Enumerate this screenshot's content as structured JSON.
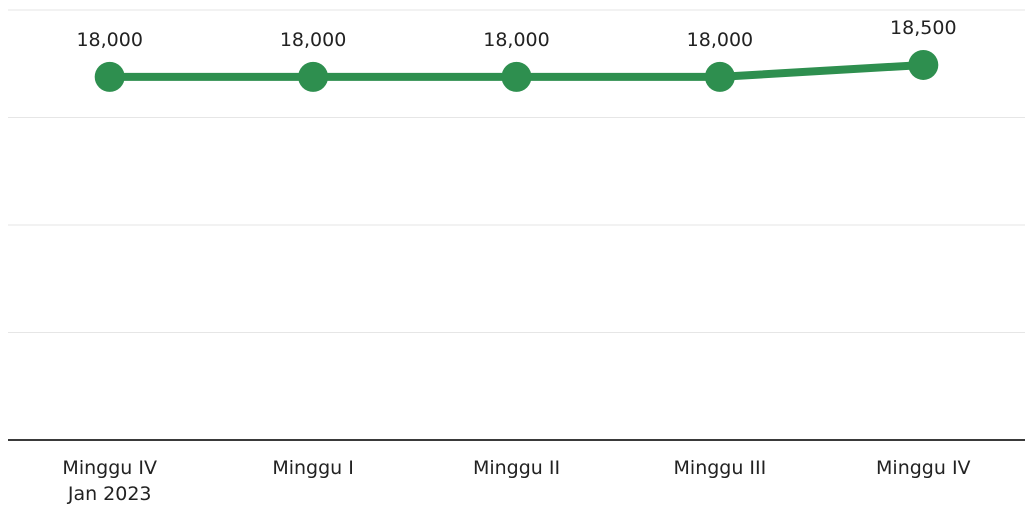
{
  "chart_data": {
    "type": "line",
    "categories": [
      "Minggu IV\nJan 2023",
      "Minggu I",
      "Minggu II",
      "Minggu III",
      "Minggu IV"
    ],
    "series": [
      {
        "color": "#2e8f4f",
        "values": [
          18000,
          18000,
          18000,
          18000,
          18500
        ],
        "value_labels": [
          "18,000",
          "18,000",
          "18,000",
          "18,000",
          "18,500"
        ]
      }
    ],
    "ylim": [
      2800,
      20800
    ],
    "yticks": [
      2800,
      7300,
      11800,
      16300,
      20800
    ],
    "grid": true
  }
}
